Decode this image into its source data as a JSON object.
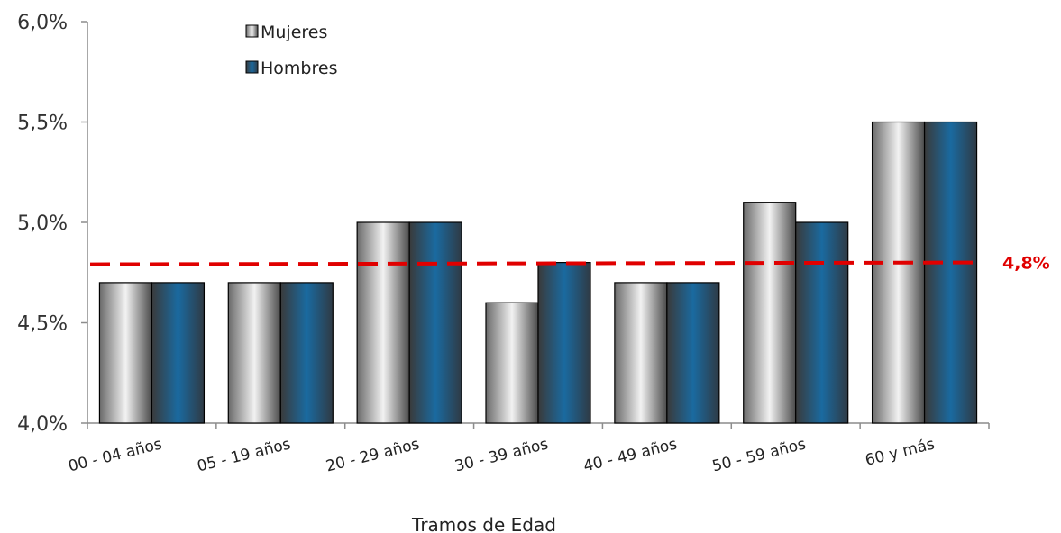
{
  "chart_data": {
    "type": "bar",
    "xlabel": "Tramos de Edad",
    "ylabel": "",
    "ylim": [
      4.0,
      6.0
    ],
    "y_ticks": [
      {
        "value": 4.0,
        "label": "4,0%"
      },
      {
        "value": 4.5,
        "label": "4,5%"
      },
      {
        "value": 5.0,
        "label": "5,0%"
      },
      {
        "value": 5.5,
        "label": "5,5%"
      },
      {
        "value": 6.0,
        "label": "6,0%"
      }
    ],
    "categories": [
      "00 - 04 años",
      "05 - 19 años",
      "20 - 29 años",
      "30 - 39 años",
      "40 - 49 años",
      "50 - 59 años",
      "60 y más"
    ],
    "series": [
      {
        "name": "Mujeres",
        "values": [
          4.7,
          4.7,
          5.0,
          4.6,
          4.7,
          5.1,
          5.5
        ],
        "color": "#d9d9d9"
      },
      {
        "name": "Hombres",
        "values": [
          4.7,
          4.7,
          5.0,
          4.8,
          4.7,
          5.0,
          5.5
        ],
        "color": "#1f5f8b"
      }
    ],
    "reference_line": {
      "value": 4.8,
      "label": "4,8%",
      "color": "#e00000",
      "style": "dashed"
    },
    "legend_position": "top-left",
    "grid": false
  }
}
